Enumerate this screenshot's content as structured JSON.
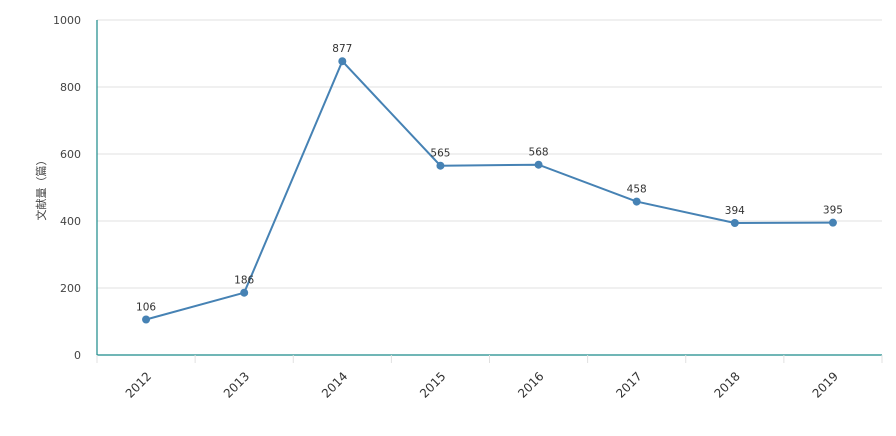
{
  "chart_data": {
    "type": "line",
    "x": [
      "2012",
      "2013",
      "2014",
      "2015",
      "2016",
      "2017",
      "2018",
      "2019"
    ],
    "series": [
      {
        "values": [
          106,
          186,
          877,
          565,
          568,
          458,
          394,
          395
        ]
      }
    ],
    "ylabel": "文献量（篇）",
    "xlabel": "",
    "ylim": [
      0,
      1000
    ],
    "yticks": [
      0,
      200,
      400,
      600,
      800,
      1000
    ],
    "grid": true,
    "colors": {
      "line": "#4682b4",
      "axis": "#1a8a8a",
      "grid": "#e0e0e0"
    }
  }
}
